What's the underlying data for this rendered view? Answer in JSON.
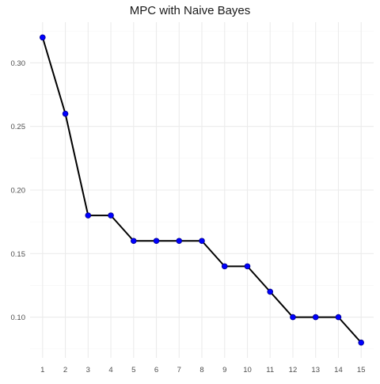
{
  "chart_data": {
    "type": "line",
    "title": "MPC with Naive Bayes",
    "xlabel": "",
    "ylabel": "",
    "x": [
      1,
      2,
      3,
      4,
      5,
      6,
      7,
      8,
      9,
      10,
      11,
      12,
      13,
      14,
      15
    ],
    "series": [
      {
        "values": [
          0.32,
          0.26,
          0.18,
          0.18,
          0.16,
          0.16,
          0.16,
          0.16,
          0.14,
          0.14,
          0.12,
          0.1,
          0.1,
          0.1,
          0.08
        ]
      }
    ],
    "xlim": [
      0.45,
      15.55
    ],
    "ylim": [
      0.068,
      0.332
    ],
    "x_ticks": [
      "1",
      "2",
      "3",
      "4",
      "5",
      "6",
      "7",
      "8",
      "9",
      "10",
      "11",
      "12",
      "13",
      "14",
      "15"
    ],
    "y_ticks": [
      "0.10",
      "0.15",
      "0.20",
      "0.25",
      "0.30"
    ],
    "y_tick_values": [
      0.1,
      0.15,
      0.2,
      0.25,
      0.3
    ],
    "y_minor_values": [
      0.075,
      0.125,
      0.175,
      0.225,
      0.275,
      0.325
    ],
    "grid": true,
    "legend": "none",
    "colors": {
      "line": "#000000",
      "point_fill": "#0000ff",
      "point_stroke": "#00008b",
      "grid_major": "#ebebeb",
      "grid_minor": "#f5f5f5",
      "tick_label": "#4d4d4d",
      "title": "#1a1a1a"
    }
  }
}
